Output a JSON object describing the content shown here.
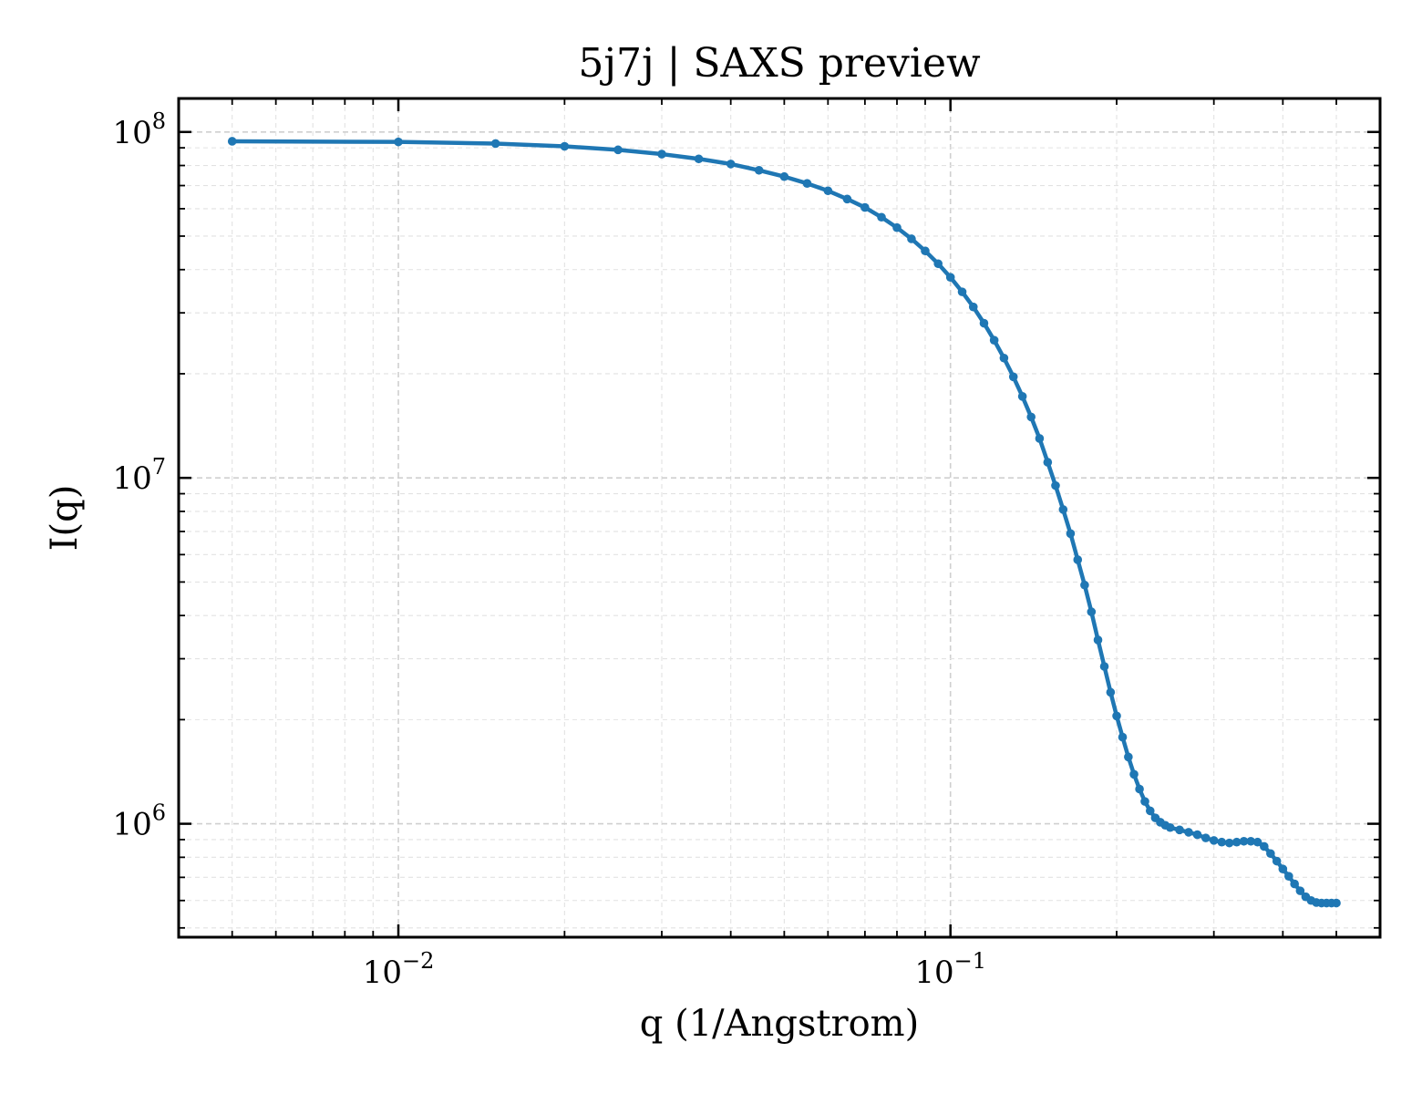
{
  "chart_data": {
    "type": "line",
    "title": "5j7j | SAXS preview",
    "xlabel": "q (1/Angstrom)",
    "ylabel": "I(q)",
    "xscale": "log",
    "yscale": "log",
    "xlim": [
      0.004,
      0.6
    ],
    "ylim": [
      470000,
      125000000
    ],
    "grid": true,
    "legend": "none",
    "line_color": "#1f77b4",
    "x_ticks": [
      {
        "value": 0.01,
        "base": "10",
        "exp": "−2"
      },
      {
        "value": 0.1,
        "base": "10",
        "exp": "−1"
      }
    ],
    "y_ticks": [
      {
        "value": 1000000,
        "base": "10",
        "exp": "6"
      },
      {
        "value": 10000000,
        "base": "10",
        "exp": "7"
      },
      {
        "value": 100000000,
        "base": "10",
        "exp": "8"
      }
    ],
    "series": [
      {
        "x": [
          0.005,
          0.01,
          0.015,
          0.02,
          0.025,
          0.03,
          0.035,
          0.04,
          0.045,
          0.05,
          0.055,
          0.06,
          0.065,
          0.07,
          0.075,
          0.08,
          0.085,
          0.09,
          0.095,
          0.1,
          0.105,
          0.11,
          0.115,
          0.12,
          0.125,
          0.13,
          0.135,
          0.14,
          0.145,
          0.15,
          0.155,
          0.16,
          0.165,
          0.17,
          0.175,
          0.18,
          0.185,
          0.19,
          0.195,
          0.2,
          0.205,
          0.21,
          0.215,
          0.22,
          0.225,
          0.23,
          0.235,
          0.24,
          0.245,
          0.25,
          0.26,
          0.27,
          0.28,
          0.29,
          0.3,
          0.31,
          0.32,
          0.33,
          0.34,
          0.35,
          0.36,
          0.37,
          0.38,
          0.39,
          0.4,
          0.41,
          0.42,
          0.43,
          0.44,
          0.45,
          0.46,
          0.47,
          0.48,
          0.49,
          0.5
        ],
        "y": [
          94000000,
          93600000,
          92600000,
          90900000,
          88800000,
          86300000,
          83600000,
          80800000,
          77500000,
          74300000,
          71000000,
          67600000,
          64000000,
          60500000,
          56700000,
          52900000,
          49100000,
          45300000,
          41600000,
          38000000,
          34500000,
          31200000,
          28000000,
          25000000,
          22200000,
          19600000,
          17200000,
          15000000,
          13000000,
          11100000,
          9500000,
          8100000,
          6900000,
          5800000,
          4900000,
          4100000,
          3400000,
          2850000,
          2400000,
          2050000,
          1780000,
          1560000,
          1390000,
          1260000,
          1160000,
          1090000,
          1040000,
          1010000,
          990000,
          975000,
          960000,
          945000,
          930000,
          910000,
          895000,
          885000,
          880000,
          885000,
          890000,
          890000,
          885000,
          860000,
          820000,
          780000,
          740000,
          705000,
          670000,
          640000,
          615000,
          600000,
          592000,
          590000,
          590000,
          590000,
          590000
        ]
      }
    ]
  }
}
